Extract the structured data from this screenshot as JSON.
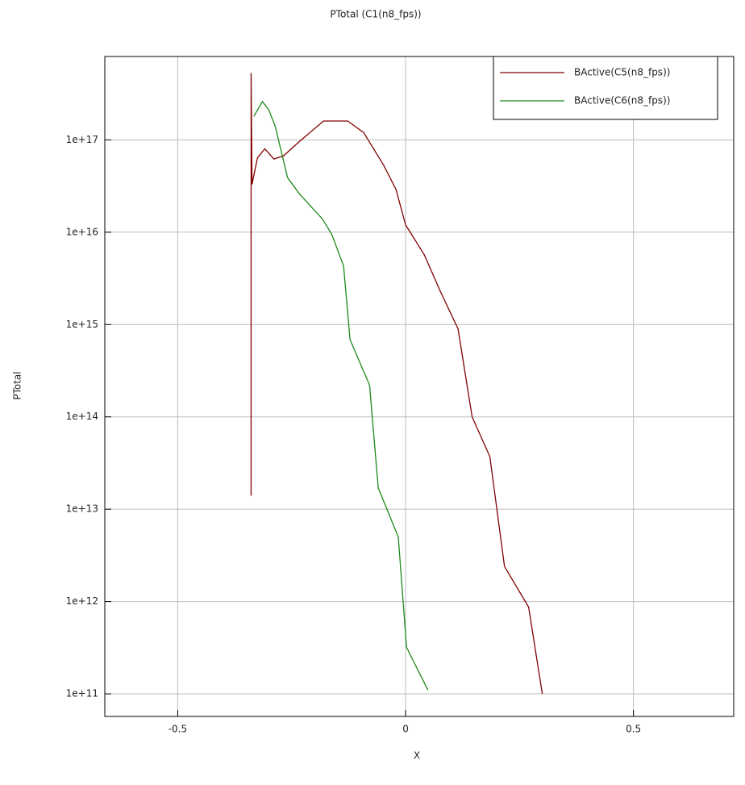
{
  "chart_data": {
    "type": "line",
    "title": "PTotal (C1(n8_fps))",
    "x_label": "X",
    "y_label": "PTotal",
    "log_y": true,
    "grid": true,
    "legend": "top-right",
    "xlim": [
      -0.66,
      0.72
    ],
    "xticks": [
      -0.5,
      0,
      0.5
    ],
    "ylim": [
      57000000000.0,
      8e+17
    ],
    "yticks": [
      {
        "value": 100000000000.0,
        "label": "1e+11"
      },
      {
        "value": 1000000000000.0,
        "label": "1e+12"
      },
      {
        "value": 10000000000000.0,
        "label": "1e+13"
      },
      {
        "value": 100000000000000.0,
        "label": "1e+14"
      },
      {
        "value": 1000000000000000.0,
        "label": "1e+15"
      },
      {
        "value": 1e+16,
        "label": "1e+16"
      },
      {
        "value": 1e+17,
        "label": "1e+17"
      }
    ],
    "series": [
      {
        "name": "BActive(C5(n8_fps))",
        "color": "#800000",
        "x": [
          -0.339,
          -0.339,
          -0.339,
          -0.337,
          -0.325,
          -0.309,
          -0.289,
          -0.268,
          -0.233,
          -0.18,
          -0.127,
          -0.092,
          -0.048,
          -0.021,
          0,
          0.041,
          0.076,
          0.115,
          0.146,
          0.185,
          0.217,
          0.27,
          0.3
        ],
        "values": [
          14000000000000.0,
          60000000000000.0,
          5.3e+17,
          3.3e+16,
          6.4e+16,
          8e+16,
          6.2e+16,
          6.7e+16,
          9.6e+16,
          1.6e+17,
          1.6e+17,
          1.2e+17,
          5.3e+16,
          2.9e+16,
          1.2e+16,
          5700000000000000.0,
          2300000000000000.0,
          900000000000000.0,
          100000000000000.0,
          37000000000000.0,
          2400000000000.0,
          870000000000.0,
          100000000000.0
        ]
      },
      {
        "name": "BActive(C6(n8_fps))",
        "color": "#1a8a1a",
        "x": [
          -0.333,
          -0.314,
          -0.3,
          -0.286,
          -0.259,
          -0.233,
          -0.183,
          -0.162,
          -0.136,
          -0.122,
          -0.079,
          -0.06,
          -0.016,
          0.002,
          0.049
        ],
        "values": [
          1.8e+17,
          2.6e+17,
          2.1e+17,
          1.4e+17,
          3.9e+16,
          2.6e+16,
          1.4e+16,
          9500000000000000.0,
          4300000000000000.0,
          690000000000000.0,
          220000000000000.0,
          17000000000000.0,
          5000000000000.0,
          320000000000.0,
          110000000000.0
        ]
      }
    ]
  }
}
